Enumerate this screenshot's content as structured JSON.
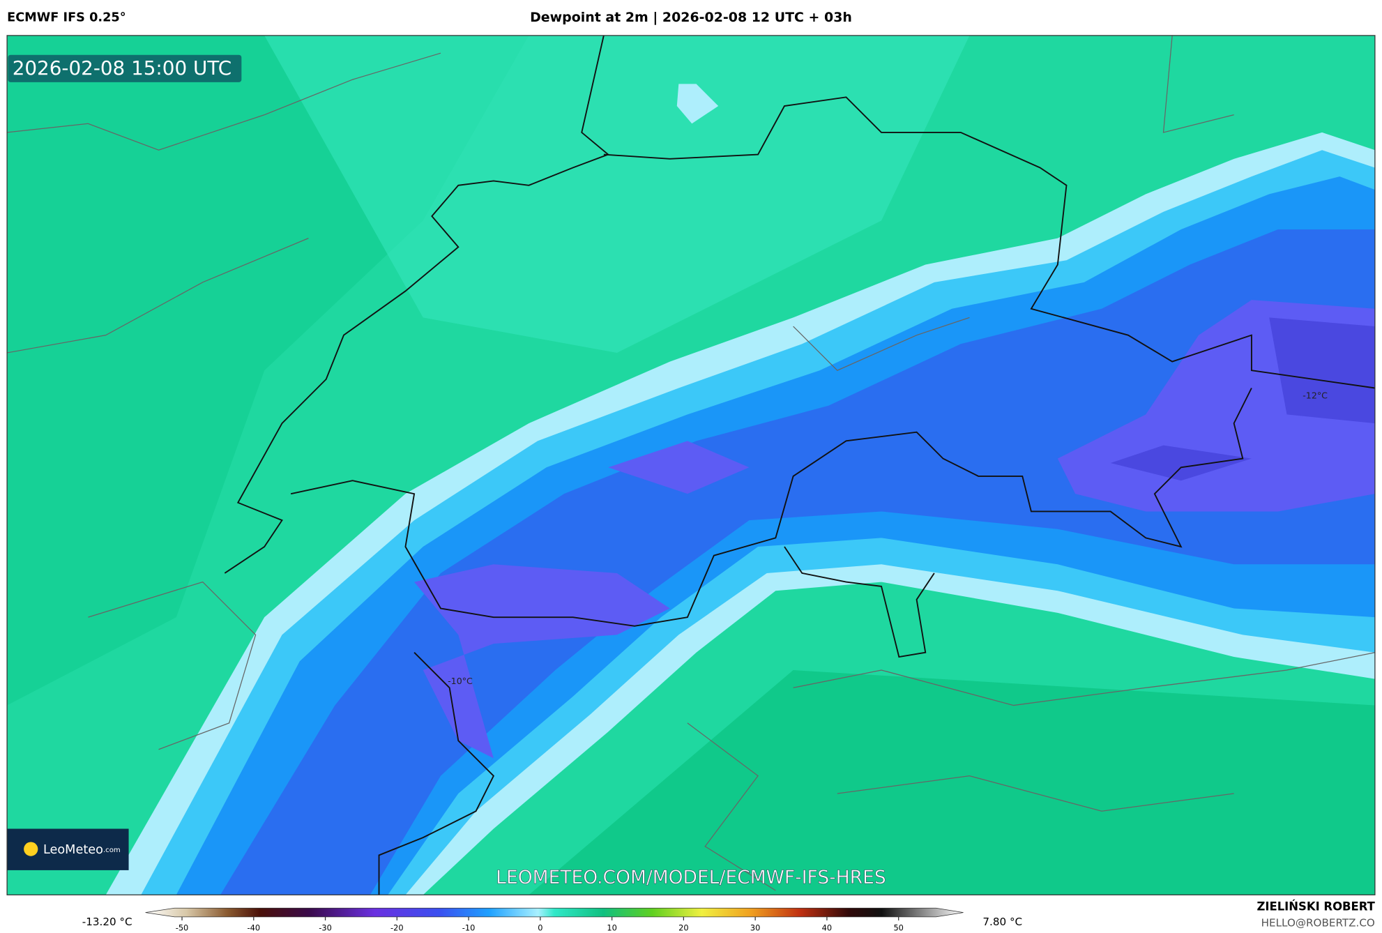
{
  "header": {
    "model": "ECMWF IFS 0.25°",
    "title": "Dewpoint at 2m | 2026-02-08 12 UTC + 03h"
  },
  "map": {
    "timestamp": "2026-02-08 15:00 UTC",
    "contour_labels": [
      "-10°C",
      "-12°C"
    ],
    "watermark": "LEOMETEO.COM/MODEL/ECMWF-IFS-HRES",
    "logo": {
      "name": "LeoMeteo",
      "suffix": ".com"
    }
  },
  "colorbar": {
    "min_label": "-13.20 °C",
    "max_label": "7.80 °C",
    "ticks": [
      -50,
      -40,
      -30,
      -20,
      -10,
      0,
      10,
      20,
      30,
      40,
      50
    ]
  },
  "footer": {
    "author": "ZIELIŃSKI ROBERT",
    "email": "HELLO@ROBERTZ.CO"
  }
}
